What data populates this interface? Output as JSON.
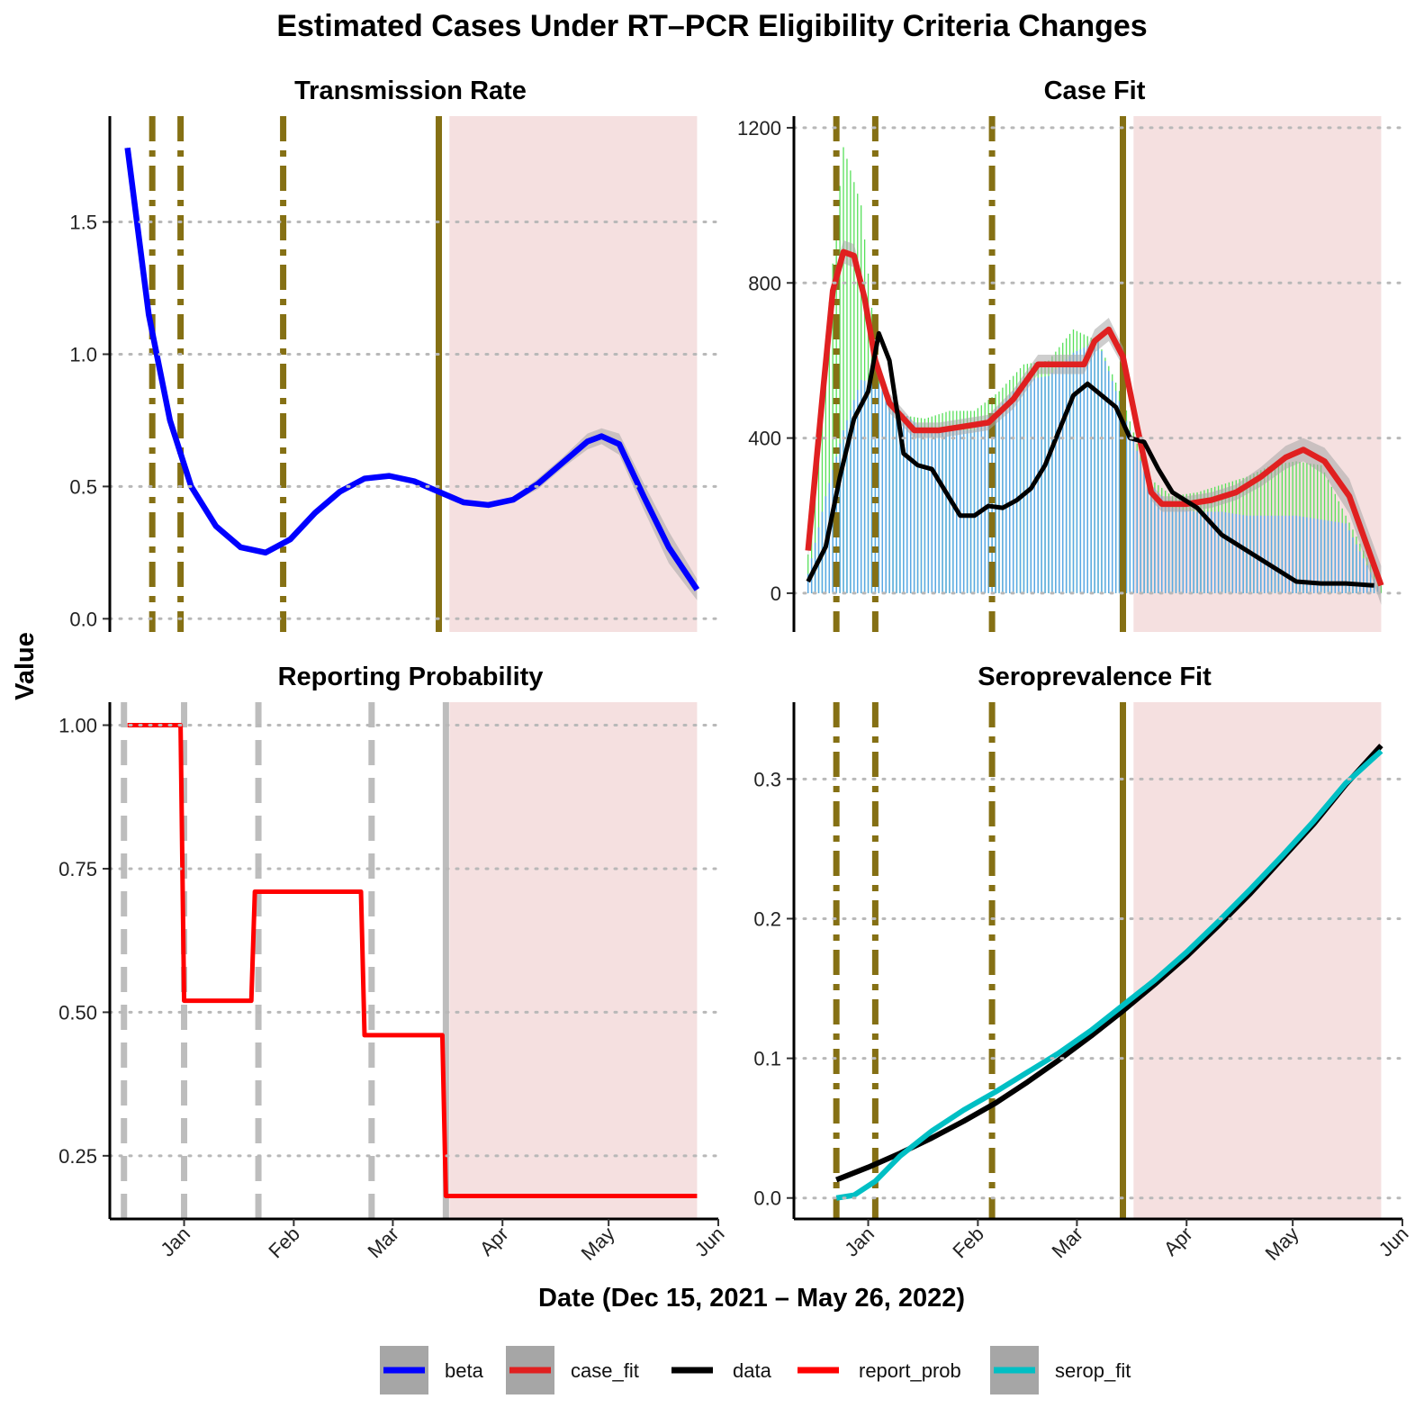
{
  "title": "Estimated Cases Under RT–PCR Eligibility Criteria Changes",
  "xlabel": "Date (Dec 15, 2021 – May 26, 2022)",
  "ylabel": "Value",
  "x_ticks": [
    "Jan",
    "Feb",
    "Mar",
    "Apr",
    "May",
    "Jun"
  ],
  "x_tick_dates": [
    "2022-01-01",
    "2022-02-01",
    "2022-03-01",
    "2022-04-01",
    "2022-05-01",
    "2022-06-01"
  ],
  "legend": [
    {
      "label": "beta",
      "color": "#0000ff",
      "band": true
    },
    {
      "label": "case_fit",
      "color": "#e02020",
      "band": true
    },
    {
      "label": "data",
      "color": "#000000",
      "band": false
    },
    {
      "label": "report_prob",
      "color": "#ff0000",
      "band": false
    },
    {
      "label": "serop_fit",
      "color": "#00bfc4",
      "band": true
    }
  ],
  "colors": {
    "policy_line": "#857014",
    "reporting_vline": "#bdbdbd",
    "forecast_shade": "#f5e0e0",
    "band": "#a6a6a6",
    "bar_blue": "#5aa8e6",
    "bar_green": "#57e05a"
  },
  "chart_data": [
    {
      "type": "line",
      "panel": "transmission-rate",
      "title": "Transmission Rate",
      "x_range": [
        "2021-12-15",
        "2022-05-26"
      ],
      "ylim": [
        -0.05,
        1.9
      ],
      "y_ticks": [
        "0.0",
        "0.5",
        "1.0",
        "1.5"
      ],
      "y_tick_values": [
        0,
        0.5,
        1.0,
        1.5
      ],
      "grid": "horizontal dotted",
      "policy_dates_dashdot": [
        "2021-12-23",
        "2021-12-31",
        "2022-01-29"
      ],
      "policy_date_solid": "2022-03-14",
      "forecast_shade": [
        "2022-03-17",
        "2022-05-26"
      ],
      "series": [
        {
          "name": "beta",
          "color": "#0000ff",
          "x": [
            "2021-12-16",
            "2021-12-22",
            "2021-12-28",
            "2022-01-03",
            "2022-01-10",
            "2022-01-17",
            "2022-01-24",
            "2022-01-31",
            "2022-02-07",
            "2022-02-14",
            "2022-02-21",
            "2022-02-28",
            "2022-03-07",
            "2022-03-14",
            "2022-03-21",
            "2022-03-28",
            "2022-04-04",
            "2022-04-11",
            "2022-04-18",
            "2022-04-25",
            "2022-04-29",
            "2022-05-04",
            "2022-05-11",
            "2022-05-18",
            "2022-05-26"
          ],
          "y": [
            1.78,
            1.15,
            0.75,
            0.5,
            0.35,
            0.27,
            0.25,
            0.3,
            0.4,
            0.48,
            0.53,
            0.54,
            0.52,
            0.48,
            0.44,
            0.43,
            0.45,
            0.51,
            0.59,
            0.67,
            0.69,
            0.66,
            0.46,
            0.27,
            0.11
          ],
          "band_lo": [
            1.77,
            1.14,
            0.74,
            0.49,
            0.34,
            0.26,
            0.24,
            0.29,
            0.39,
            0.47,
            0.52,
            0.53,
            0.51,
            0.47,
            0.43,
            0.42,
            0.44,
            0.49,
            0.57,
            0.64,
            0.66,
            0.62,
            0.41,
            0.21,
            0.07
          ],
          "band_hi": [
            1.79,
            1.16,
            0.76,
            0.51,
            0.36,
            0.28,
            0.26,
            0.31,
            0.41,
            0.49,
            0.54,
            0.55,
            0.53,
            0.49,
            0.45,
            0.44,
            0.46,
            0.53,
            0.61,
            0.7,
            0.72,
            0.7,
            0.51,
            0.33,
            0.15
          ]
        }
      ]
    },
    {
      "type": "line",
      "panel": "case-fit",
      "title": "Case Fit",
      "x_range": [
        "2021-12-15",
        "2022-05-26"
      ],
      "ylim": [
        -100,
        1230
      ],
      "y_ticks": [
        "0",
        "400",
        "800",
        "1200"
      ],
      "y_tick_values": [
        0,
        400,
        800,
        1200
      ],
      "grid": "horizontal dotted",
      "policy_dates_dashdot": [
        "2021-12-23",
        "2022-01-03",
        "2022-02-05"
      ],
      "policy_date_solid": "2022-03-14",
      "forecast_shade": [
        "2022-03-17",
        "2022-05-26"
      ],
      "bars": {
        "x_start": "2021-12-15",
        "x_end": "2022-05-26",
        "blue_total_x": [
          "2021-12-15",
          "2021-12-20",
          "2021-12-25",
          "2021-12-30",
          "2022-01-04",
          "2022-01-10",
          "2022-01-17",
          "2022-01-24",
          "2022-01-31",
          "2022-02-07",
          "2022-02-14",
          "2022-02-21",
          "2022-02-28",
          "2022-03-07",
          "2022-03-14",
          "2022-03-21",
          "2022-03-28",
          "2022-04-04",
          "2022-04-11",
          "2022-04-18",
          "2022-04-25",
          "2022-05-02",
          "2022-05-09",
          "2022-05-16",
          "2022-05-26"
        ],
        "blue_total_y": [
          50,
          250,
          420,
          550,
          540,
          470,
          420,
          420,
          420,
          480,
          550,
          560,
          620,
          650,
          470,
          290,
          220,
          210,
          210,
          200,
          200,
          200,
          190,
          180,
          0
        ],
        "green_total_y": [
          100,
          650,
          1150,
          1000,
          560,
          460,
          450,
          470,
          470,
          520,
          590,
          600,
          680,
          650,
          500,
          300,
          250,
          260,
          280,
          300,
          330,
          340,
          330,
          200,
          20
        ]
      },
      "series": [
        {
          "name": "case_fit",
          "color": "#e02020",
          "x": [
            "2021-12-15",
            "2021-12-19",
            "2021-12-22",
            "2021-12-25",
            "2021-12-28",
            "2021-12-31",
            "2022-01-03",
            "2022-01-07",
            "2022-01-14",
            "2022-01-21",
            "2022-01-28",
            "2022-02-04",
            "2022-02-11",
            "2022-02-18",
            "2022-02-25",
            "2022-03-03",
            "2022-03-06",
            "2022-03-10",
            "2022-03-14",
            "2022-03-18",
            "2022-03-22",
            "2022-03-25",
            "2022-04-01",
            "2022-04-08",
            "2022-04-15",
            "2022-04-22",
            "2022-04-29",
            "2022-05-04",
            "2022-05-10",
            "2022-05-17",
            "2022-05-26"
          ],
          "y": [
            110,
            500,
            780,
            880,
            870,
            760,
            600,
            490,
            420,
            420,
            430,
            440,
            500,
            590,
            590,
            590,
            650,
            680,
            610,
            430,
            260,
            230,
            230,
            240,
            260,
            300,
            350,
            370,
            340,
            250,
            20
          ],
          "band_lo": [
            90,
            470,
            750,
            850,
            840,
            730,
            575,
            465,
            400,
            400,
            410,
            420,
            475,
            565,
            565,
            565,
            620,
            650,
            585,
            410,
            240,
            210,
            210,
            220,
            240,
            275,
            320,
            340,
            305,
            205,
            -30
          ],
          "band_hi": [
            130,
            530,
            810,
            910,
            900,
            790,
            625,
            515,
            440,
            440,
            450,
            460,
            525,
            615,
            615,
            615,
            680,
            710,
            635,
            450,
            280,
            250,
            250,
            260,
            280,
            325,
            380,
            400,
            375,
            295,
            70
          ]
        },
        {
          "name": "data",
          "color": "#000000",
          "x": [
            "2021-12-15",
            "2021-12-20",
            "2021-12-24",
            "2021-12-28",
            "2022-01-01",
            "2022-01-04",
            "2022-01-07",
            "2022-01-11",
            "2022-01-15",
            "2022-01-19",
            "2022-01-23",
            "2022-01-27",
            "2022-01-31",
            "2022-02-04",
            "2022-02-08",
            "2022-02-12",
            "2022-02-16",
            "2022-02-20",
            "2022-02-24",
            "2022-02-28",
            "2022-03-04",
            "2022-03-08",
            "2022-03-12",
            "2022-03-16",
            "2022-03-20",
            "2022-03-24",
            "2022-03-28",
            "2022-04-04",
            "2022-04-11",
            "2022-04-18",
            "2022-04-25",
            "2022-05-02",
            "2022-05-09",
            "2022-05-16",
            "2022-05-24"
          ],
          "y": [
            30,
            120,
            300,
            450,
            520,
            670,
            600,
            360,
            330,
            320,
            260,
            200,
            200,
            225,
            220,
            240,
            270,
            330,
            420,
            510,
            540,
            510,
            480,
            400,
            390,
            320,
            260,
            220,
            150,
            110,
            70,
            30,
            25,
            25,
            20
          ]
        }
      ]
    },
    {
      "type": "line",
      "panel": "reporting-probability",
      "title": "Reporting Probability",
      "x_range": [
        "2021-12-15",
        "2022-05-26"
      ],
      "ylim": [
        0.14,
        1.04
      ],
      "y_ticks": [
        "0.25",
        "0.50",
        "0.75",
        "1.00"
      ],
      "y_tick_values": [
        0.25,
        0.5,
        0.75,
        1.0
      ],
      "grid": "horizontal dotted",
      "reporting_dates_dashed": [
        "2021-12-15",
        "2022-01-01",
        "2022-01-22",
        "2022-02-23"
      ],
      "reporting_date_solid": "2022-03-16",
      "forecast_shade": [
        "2022-03-17",
        "2022-05-26"
      ],
      "series": [
        {
          "name": "report_prob",
          "color": "#ff0000",
          "x": [
            "2021-12-16",
            "2021-12-31",
            "2022-01-01",
            "2022-01-20",
            "2022-01-21",
            "2022-02-20",
            "2022-02-21",
            "2022-03-15",
            "2022-03-16",
            "2022-05-26"
          ],
          "y": [
            1.0,
            1.0,
            0.52,
            0.52,
            0.71,
            0.71,
            0.46,
            0.46,
            0.18,
            0.18
          ]
        }
      ]
    },
    {
      "type": "line",
      "panel": "seroprevalence-fit",
      "title": "Seroprevalence Fit",
      "x_range": [
        "2021-12-15",
        "2022-05-26"
      ],
      "ylim": [
        -0.015,
        0.355
      ],
      "y_ticks": [
        "0.0",
        "0.1",
        "0.2",
        "0.3"
      ],
      "y_tick_values": [
        0.0,
        0.1,
        0.2,
        0.3
      ],
      "grid": "horizontal dotted",
      "policy_dates_dashdot": [
        "2021-12-23",
        "2022-01-03",
        "2022-02-05"
      ],
      "policy_date_solid": "2022-03-14",
      "forecast_shade": [
        "2022-03-17",
        "2022-05-26"
      ],
      "series": [
        {
          "name": "data",
          "color": "#000000",
          "x": [
            "2021-12-23",
            "2022-01-01",
            "2022-01-10",
            "2022-01-19",
            "2022-01-28",
            "2022-02-06",
            "2022-02-15",
            "2022-02-24",
            "2022-03-05",
            "2022-03-14",
            "2022-03-23",
            "2022-04-01",
            "2022-04-10",
            "2022-04-19",
            "2022-04-28",
            "2022-05-07",
            "2022-05-16",
            "2022-05-26"
          ],
          "x_note": "",
          "y": [
            0.013,
            0.022,
            0.032,
            0.043,
            0.055,
            0.068,
            0.083,
            0.099,
            0.116,
            0.134,
            0.153,
            0.173,
            0.195,
            0.218,
            0.243,
            0.268,
            0.296,
            0.324
          ]
        },
        {
          "name": "serop_fit",
          "color": "#00bfc4",
          "x": [
            "2021-12-23",
            "2021-12-28",
            "2022-01-03",
            "2022-01-10",
            "2022-01-19",
            "2022-01-28",
            "2022-02-06",
            "2022-02-15",
            "2022-02-24",
            "2022-03-05",
            "2022-03-14",
            "2022-03-23",
            "2022-04-01",
            "2022-04-10",
            "2022-04-19",
            "2022-04-28",
            "2022-05-07",
            "2022-05-16",
            "2022-05-26"
          ],
          "y": [
            0.0,
            0.002,
            0.012,
            0.03,
            0.048,
            0.063,
            0.076,
            0.09,
            0.104,
            0.12,
            0.138,
            0.156,
            0.176,
            0.198,
            0.221,
            0.245,
            0.27,
            0.297,
            0.32
          ]
        }
      ]
    }
  ]
}
